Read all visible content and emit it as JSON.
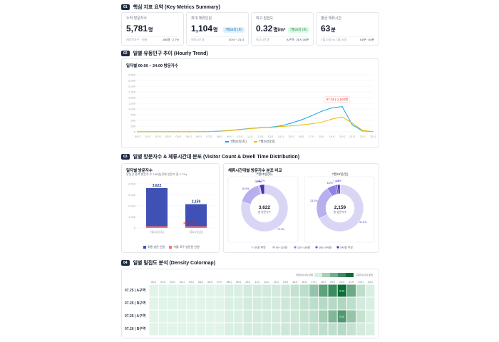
{
  "sections": {
    "s1": {
      "num": "01",
      "title": "핵심 지표 요약 (Key Metrics Summary)"
    },
    "s2": {
      "num": "02",
      "title": "일별 유동인구 추이 (Hourly Trend)"
    },
    "s3": {
      "num": "03",
      "title": "일별 방문자수 & 체류시간대 분포 (Visitor Count & Dwell Time Distribution)"
    },
    "s4": {
      "num": "04",
      "title": "일별 밀집도 분석 (Density Colormap)"
    }
  },
  "kpis": [
    {
      "label": "누적 방문자수",
      "value": "5,781",
      "unit": "명",
      "badge": "",
      "foot_left": "재방문자수 · 비율",
      "foot_right": "156명 · 2.7%"
    },
    {
      "label": "최대 체류인원",
      "value": "1,104",
      "unit": "명",
      "badge": "7월25일 (토)",
      "foot_left": "최대시간대",
      "foot_right": "20시 ~ 21시"
    },
    {
      "label": "최고 밀집도",
      "value": "0.32",
      "unit": "명/m²",
      "badge": "7월25일 (토)",
      "foot_left": "최고시간대",
      "foot_right": "A구역 · 20시 30분"
    },
    {
      "label": "평균 체류시간",
      "value": "63",
      "unit": "분",
      "badge": "",
      "foot_left": "7월 25일 vs 7월 26일",
      "foot_right": "61분 · 64분"
    }
  ],
  "trend": {
    "title": "일자별 00:00 ~ 24:00 방문자수",
    "tooltip": "07.25 | 1,104명",
    "legend": [
      "7월25일(토)",
      "7월26일(일)"
    ]
  },
  "chart_data": [
    {
      "type": "line",
      "title": "일자별 00:00 ~ 24:00 방문자수",
      "x": [
        "00시",
        "01시",
        "02시",
        "03시",
        "04시",
        "05시",
        "06시",
        "07시",
        "08시",
        "09시",
        "10시",
        "11시",
        "12시",
        "13시",
        "14시",
        "15시",
        "16시",
        "17시",
        "18시",
        "19시",
        "20시",
        "21시",
        "22시",
        "23시"
      ],
      "ylim": [
        0,
        2500
      ],
      "yticks": [
        "0",
        "250",
        "500",
        "750",
        "1,000",
        "1,250",
        "1,500",
        "1,750",
        "2,000",
        "2,250",
        "2,500"
      ],
      "series": [
        {
          "name": "7월25일(토)",
          "color": "#0ea5e9",
          "values": [
            5,
            3,
            2,
            2,
            2,
            3,
            5,
            12,
            30,
            60,
            100,
            150,
            180,
            200,
            260,
            380,
            520,
            700,
            900,
            1050,
            1104,
            300,
            40,
            10
          ]
        },
        {
          "name": "7월26일(일)",
          "color": "#f2b705",
          "values": [
            5,
            3,
            2,
            2,
            2,
            3,
            5,
            10,
            25,
            50,
            90,
            140,
            170,
            190,
            230,
            260,
            300,
            350,
            420,
            560,
            650,
            380,
            60,
            10
          ]
        }
      ],
      "annotation": "07.25 | 1,104명"
    },
    {
      "type": "bar",
      "title": "일자별 방문자수",
      "subtitle": "양일간 중복 방문자 수 156명(전체 방문자 중 2.7%)",
      "categories": [
        "7월25일(토)",
        "7월26일(일)"
      ],
      "ylim": [
        0,
        4000
      ],
      "yticks": [
        "0",
        "1,000",
        "2,000",
        "3,000",
        "4,000"
      ],
      "series": [
        {
          "name": "최종 방문인원",
          "color": "#3f51b5",
          "values": [
            3622,
            2159
          ]
        },
        {
          "name": "이틀 모두 방문한 인원",
          "color": "#f87171",
          "values": [
            156,
            156
          ]
        }
      ],
      "data_labels": [
        "3,622",
        "2,159"
      ],
      "overlap_label": "중복: 156명"
    },
    {
      "type": "pie",
      "title": "체류시간대별 방문자수 분포 비교",
      "charts": [
        {
          "name": "7월25일(토)",
          "total": "3,622",
          "total_label": "총 방문자수",
          "values": [
            79.3,
            16.4,
            0.6,
            0.5,
            3.2
          ],
          "labels": [
            "79.3%",
            "16.4%",
            "0.6%",
            "0.5%",
            "3.2%"
          ]
        },
        {
          "name": "7월26일(일)",
          "total": "2,159",
          "total_label": "총 방문자수",
          "values": [
            67.6,
            23.2,
            6.2,
            1.2,
            1.8
          ],
          "labels": [
            "67.6%",
            "23.2%",
            "6.2%",
            "1.2%",
            "1.8%"
          ]
        }
      ],
      "legend": [
        "60분 미만",
        "60~120분",
        "120~180분",
        "180~240분",
        "240분 이상"
      ],
      "colors": [
        "#d9d6f5",
        "#b7b0ee",
        "#8e84e3",
        "#6a5ad2",
        "#4b32b5"
      ]
    },
    {
      "type": "heatmap",
      "title": "일별 밀집도 분석 (Density Colormap)",
      "x": [
        "00시",
        "01시",
        "02시",
        "03시",
        "04시",
        "05시",
        "06시",
        "07시",
        "08시",
        "09시",
        "10시",
        "11시",
        "12시",
        "13시",
        "14시",
        "15시",
        "16시",
        "17시",
        "18시",
        "19시",
        "20시",
        "21시",
        "22시",
        "23시"
      ],
      "rows": [
        "07.25 | A구역",
        "07.25 | B구역",
        "07.26 | A구역",
        "07.26 | B구역"
      ],
      "values": [
        [
          0.01,
          0.01,
          0.01,
          0.01,
          0.01,
          0.01,
          0.01,
          0.01,
          0.02,
          0.02,
          0.03,
          0.03,
          0.03,
          0.03,
          0.04,
          0.05,
          0.06,
          0.12,
          0.2,
          0.25,
          0.32,
          0.18,
          0.06,
          0.02
        ],
        [
          0.01,
          0.01,
          0.01,
          0.01,
          0.01,
          0.01,
          0.01,
          0.01,
          0.02,
          0.02,
          0.03,
          0.03,
          0.03,
          0.03,
          0.04,
          0.04,
          0.05,
          0.06,
          0.07,
          0.07,
          0.08,
          0.06,
          0.03,
          0.02
        ],
        [
          0.01,
          0.01,
          0.01,
          0.01,
          0.01,
          0.01,
          0.01,
          0.01,
          0.02,
          0.02,
          0.03,
          0.03,
          0.03,
          0.03,
          0.04,
          0.04,
          0.05,
          0.06,
          0.1,
          0.15,
          0.22,
          0.12,
          0.05,
          0.02
        ],
        [
          0.01,
          0.01,
          0.01,
          0.01,
          0.01,
          0.01,
          0.01,
          0.01,
          0.02,
          0.02,
          0.03,
          0.03,
          0.03,
          0.03,
          0.04,
          0.04,
          0.04,
          0.05,
          0.06,
          0.06,
          0.07,
          0.05,
          0.03,
          0.02
        ]
      ],
      "cell_labels": {
        "0-20": "0.32",
        "2-20": "0.22"
      },
      "scale_low": "저밀도(0.03) 낮음",
      "scale_high": "고밀도(0.32) 높음"
    }
  ],
  "bar_panel": {
    "title": "일자별 방문자수",
    "subtitle": "양일간 중복 방문자 수 156명(전체 방문자 중 2.7%)",
    "legend": [
      "최종 방문 인원",
      "이틀 모두 방문한 인원"
    ]
  },
  "donut_panel": {
    "title": "체류시간대별 방문자수 분포 비교"
  },
  "heatmap": {
    "rows": [
      "07.25 | A구역",
      "07.25 | B구역",
      "07.26 | A구역",
      "07.26 | B구역"
    ]
  }
}
